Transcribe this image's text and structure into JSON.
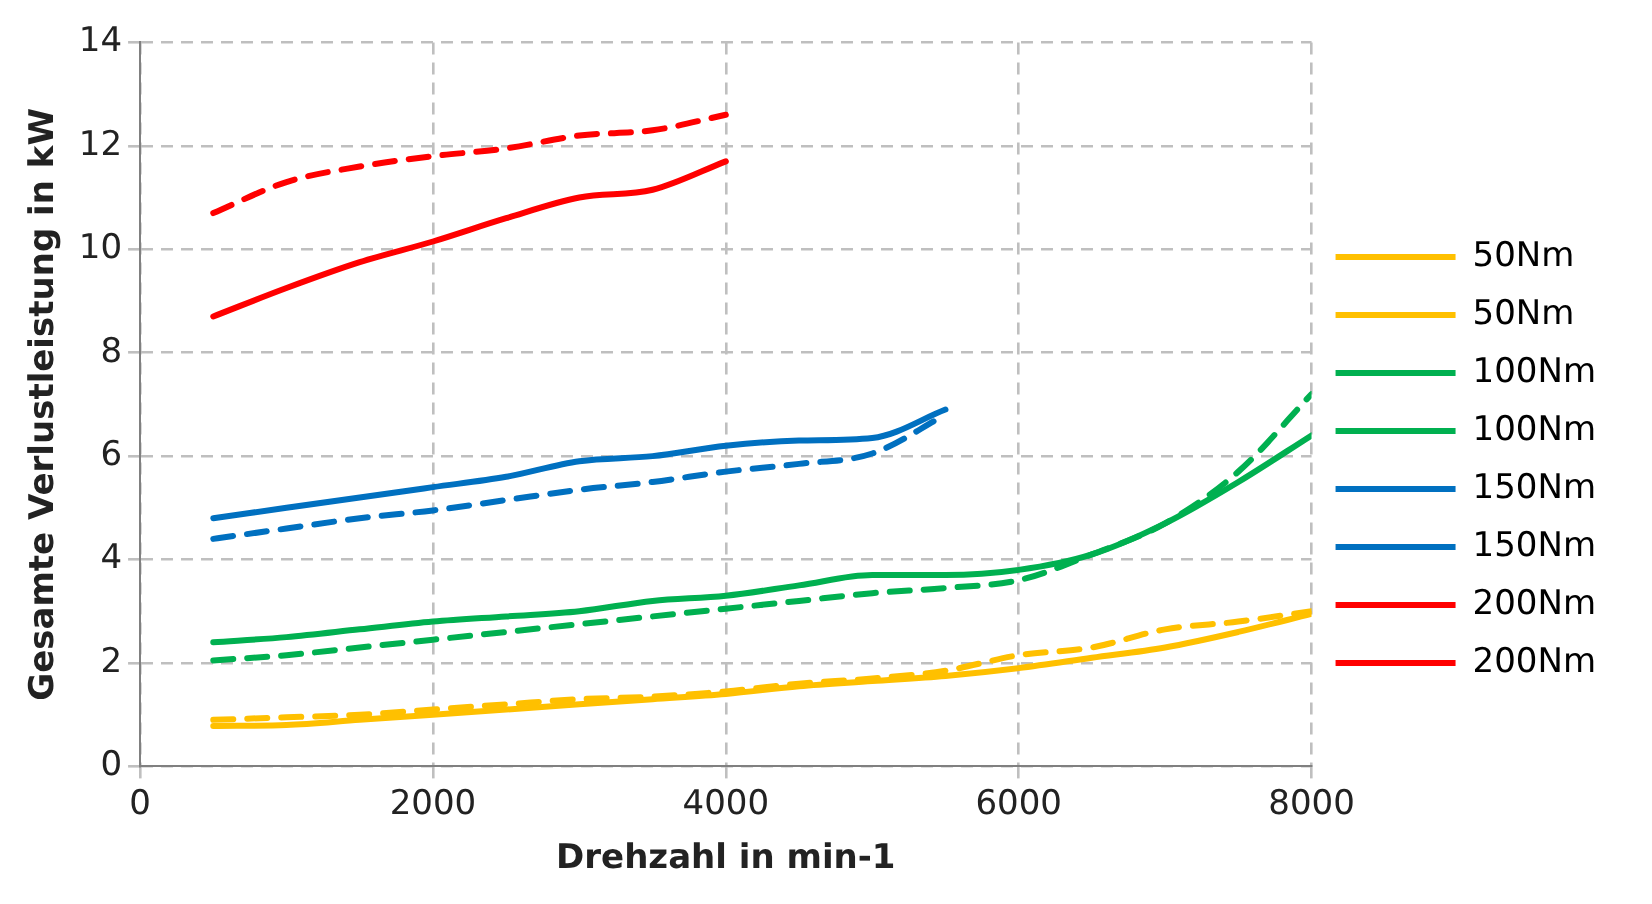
{
  "chart_data": {
    "type": "line",
    "xlabel": "Drehzahl in min-1",
    "ylabel": "Gesamte Verlustleistung in kW",
    "xlim": [
      0,
      8000
    ],
    "xticks": [
      0,
      2000,
      4000,
      6000,
      8000
    ],
    "ylim": [
      0,
      14
    ],
    "yticks": [
      0,
      2,
      4,
      6,
      8,
      10,
      12,
      14
    ],
    "grid": true,
    "legend": "right",
    "marker": "none",
    "series": [
      {
        "name": "50Nm",
        "color": "#ffc000",
        "line_style": "solid",
        "x": [
          500,
          1000,
          1500,
          2000,
          2500,
          3000,
          3500,
          4000,
          4500,
          5000,
          5500,
          6000,
          6500,
          7000,
          7500,
          8000
        ],
        "values": [
          0.78,
          0.8,
          0.9,
          1.0,
          1.1,
          1.2,
          1.3,
          1.4,
          1.55,
          1.65,
          1.75,
          1.9,
          2.1,
          2.3,
          2.6,
          2.95
        ]
      },
      {
        "name": "50Nm",
        "color": "#ffc000",
        "line_style": "dashed",
        "x": [
          500,
          1000,
          1500,
          2000,
          2500,
          3000,
          3500,
          4000,
          4500,
          5000,
          5500,
          6000,
          6500,
          7000,
          7500,
          8000
        ],
        "values": [
          0.9,
          0.95,
          1.0,
          1.1,
          1.2,
          1.3,
          1.35,
          1.45,
          1.6,
          1.7,
          1.85,
          2.15,
          2.3,
          2.65,
          2.8,
          3.0
        ]
      },
      {
        "name": "100Nm",
        "color": "#00b050",
        "line_style": "solid",
        "x": [
          500,
          1000,
          1500,
          2000,
          2500,
          3000,
          3500,
          4000,
          4500,
          5000,
          5500,
          6000,
          6500,
          7000,
          7500,
          8000
        ],
        "values": [
          2.4,
          2.5,
          2.65,
          2.8,
          2.9,
          3.0,
          3.2,
          3.3,
          3.5,
          3.7,
          3.7,
          3.8,
          4.1,
          4.7,
          5.5,
          6.4
        ]
      },
      {
        "name": "100Nm",
        "color": "#00b050",
        "line_style": "dashed",
        "x": [
          500,
          1000,
          1500,
          2000,
          2500,
          3000,
          3500,
          4000,
          4500,
          5000,
          5500,
          6000,
          6500,
          7000,
          7500,
          8000
        ],
        "values": [
          2.05,
          2.15,
          2.3,
          2.45,
          2.6,
          2.75,
          2.9,
          3.05,
          3.2,
          3.35,
          3.45,
          3.6,
          4.1,
          4.7,
          5.7,
          7.2
        ]
      },
      {
        "name": "150Nm",
        "color": "#0070c0",
        "line_style": "solid",
        "x": [
          500,
          1000,
          1500,
          2000,
          2500,
          3000,
          3500,
          4000,
          4500,
          5000,
          5500
        ],
        "values": [
          4.8,
          5.0,
          5.2,
          5.4,
          5.6,
          5.9,
          6.0,
          6.2,
          6.3,
          6.35,
          6.9
        ]
      },
      {
        "name": "150Nm",
        "color": "#0070c0",
        "line_style": "dashed",
        "x": [
          500,
          1000,
          1500,
          2000,
          2500,
          3000,
          3500,
          4000,
          4500,
          5000,
          5500
        ],
        "values": [
          4.4,
          4.6,
          4.8,
          4.95,
          5.15,
          5.35,
          5.5,
          5.7,
          5.85,
          6.05,
          6.8
        ]
      },
      {
        "name": "200Nm",
        "color": "#ff0000",
        "line_style": "solid",
        "x": [
          500,
          1000,
          1500,
          2000,
          2500,
          3000,
          3500,
          4000
        ],
        "values": [
          8.7,
          9.25,
          9.75,
          10.15,
          10.6,
          11.0,
          11.15,
          11.7
        ]
      },
      {
        "name": "200Nm",
        "color": "#ff0000",
        "line_style": "dashed",
        "x": [
          500,
          1000,
          1500,
          2000,
          2500,
          3000,
          3500,
          4000
        ],
        "values": [
          10.7,
          11.3,
          11.6,
          11.8,
          11.95,
          12.2,
          12.3,
          12.6
        ]
      }
    ]
  }
}
